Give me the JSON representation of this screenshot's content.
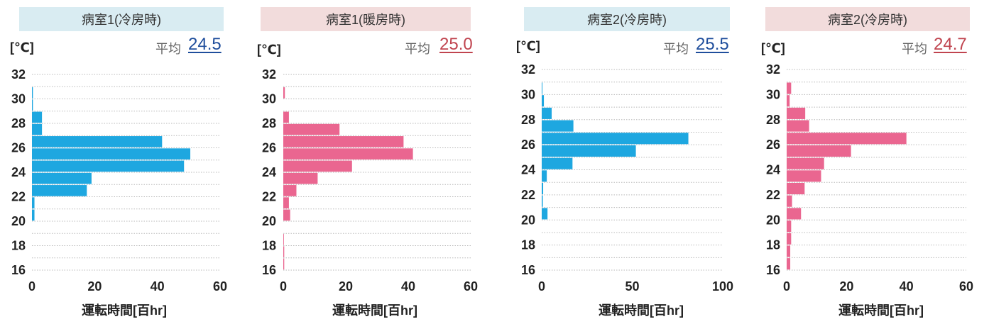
{
  "chart_data": [
    {
      "type": "bar",
      "orientation": "horizontal",
      "title": "病室1(冷房時)",
      "unit_label": "[℃]",
      "avg_label": "平均",
      "avg_value": "24.5",
      "xlabel": "運転時間[百hr]",
      "xlim": [
        0,
        60
      ],
      "xticks": [
        "0",
        "20",
        "40",
        "60"
      ],
      "ylim": [
        16,
        32
      ],
      "yticks": [
        "16",
        "18",
        "20",
        "22",
        "24",
        "26",
        "28",
        "30",
        "32"
      ],
      "color": "#1ea7e0",
      "avg_color": "#1f4e9c",
      "title_bg": "#d9ecf2",
      "bins": [
        30,
        29,
        28,
        27,
        26,
        25,
        24,
        23,
        22,
        21,
        20,
        19,
        18,
        17,
        16
      ],
      "values": [
        0.3,
        0.3,
        3.2,
        3.2,
        41.5,
        50.5,
        48.5,
        19,
        17.5,
        0.8,
        0.8,
        0,
        0,
        0,
        0
      ]
    },
    {
      "type": "bar",
      "orientation": "horizontal",
      "title": "病室1(暖房時)",
      "unit_label": "[℃]",
      "avg_label": "平均",
      "avg_value": "25.0",
      "xlabel": "運転時間[百hr]",
      "xlim": [
        0,
        60
      ],
      "xticks": [
        "0",
        "20",
        "40",
        "60"
      ],
      "ylim": [
        16,
        32
      ],
      "yticks": [
        "16",
        "18",
        "20",
        "22",
        "24",
        "26",
        "28",
        "30",
        "32"
      ],
      "color": "#ea6690",
      "avg_color": "#c0444f",
      "title_bg": "#f2dcdc",
      "bins": [
        30,
        29,
        28,
        27,
        26,
        25,
        24,
        23,
        22,
        21,
        20,
        19,
        18,
        17,
        16
      ],
      "values": [
        0.5,
        0,
        1.8,
        18,
        38.5,
        41.5,
        22,
        11,
        4.2,
        1.8,
        2.2,
        0,
        0.2,
        0.3,
        0.3
      ]
    },
    {
      "type": "bar",
      "orientation": "horizontal",
      "title": "病室2(冷房時)",
      "unit_label": "[℃]",
      "avg_label": "平均",
      "avg_value": "25.5",
      "xlabel": "運転時間[百hr]",
      "xlim": [
        0,
        100
      ],
      "xticks": [
        "0",
        "50",
        "100"
      ],
      "ylim": [
        16,
        32
      ],
      "yticks": [
        "16",
        "18",
        "20",
        "22",
        "24",
        "26",
        "28",
        "30",
        "32"
      ],
      "color": "#1ea7e0",
      "avg_color": "#1f4e9c",
      "title_bg": "#d9ecf2",
      "bins": [
        30,
        29,
        28,
        27,
        26,
        25,
        24,
        23,
        22,
        21,
        20,
        19,
        18,
        17,
        16
      ],
      "values": [
        0.4,
        1.2,
        5.5,
        17.5,
        81,
        52,
        17,
        2.8,
        0.8,
        0.6,
        3.2,
        0,
        0,
        0,
        0
      ]
    },
    {
      "type": "bar",
      "orientation": "horizontal",
      "title": "病室2(冷房時)",
      "unit_label": "[℃]",
      "avg_label": "平均",
      "avg_value": "24.7",
      "xlabel": "運転時間[百hr]",
      "xlim": [
        0,
        60
      ],
      "xticks": [
        "0",
        "20",
        "40",
        "60"
      ],
      "ylim": [
        16,
        32
      ],
      "yticks": [
        "16",
        "18",
        "20",
        "22",
        "24",
        "26",
        "28",
        "30",
        "32"
      ],
      "color": "#ea6690",
      "avg_color": "#c0444f",
      "title_bg": "#f2dcdc",
      "bins": [
        30,
        29,
        28,
        27,
        26,
        25,
        24,
        23,
        22,
        21,
        20,
        19,
        18,
        17,
        16
      ],
      "values": [
        1.5,
        1,
        6.2,
        7.5,
        40,
        21.5,
        12.5,
        11.5,
        6,
        1.8,
        4.8,
        1.5,
        1.5,
        1.2,
        1.2
      ]
    }
  ]
}
